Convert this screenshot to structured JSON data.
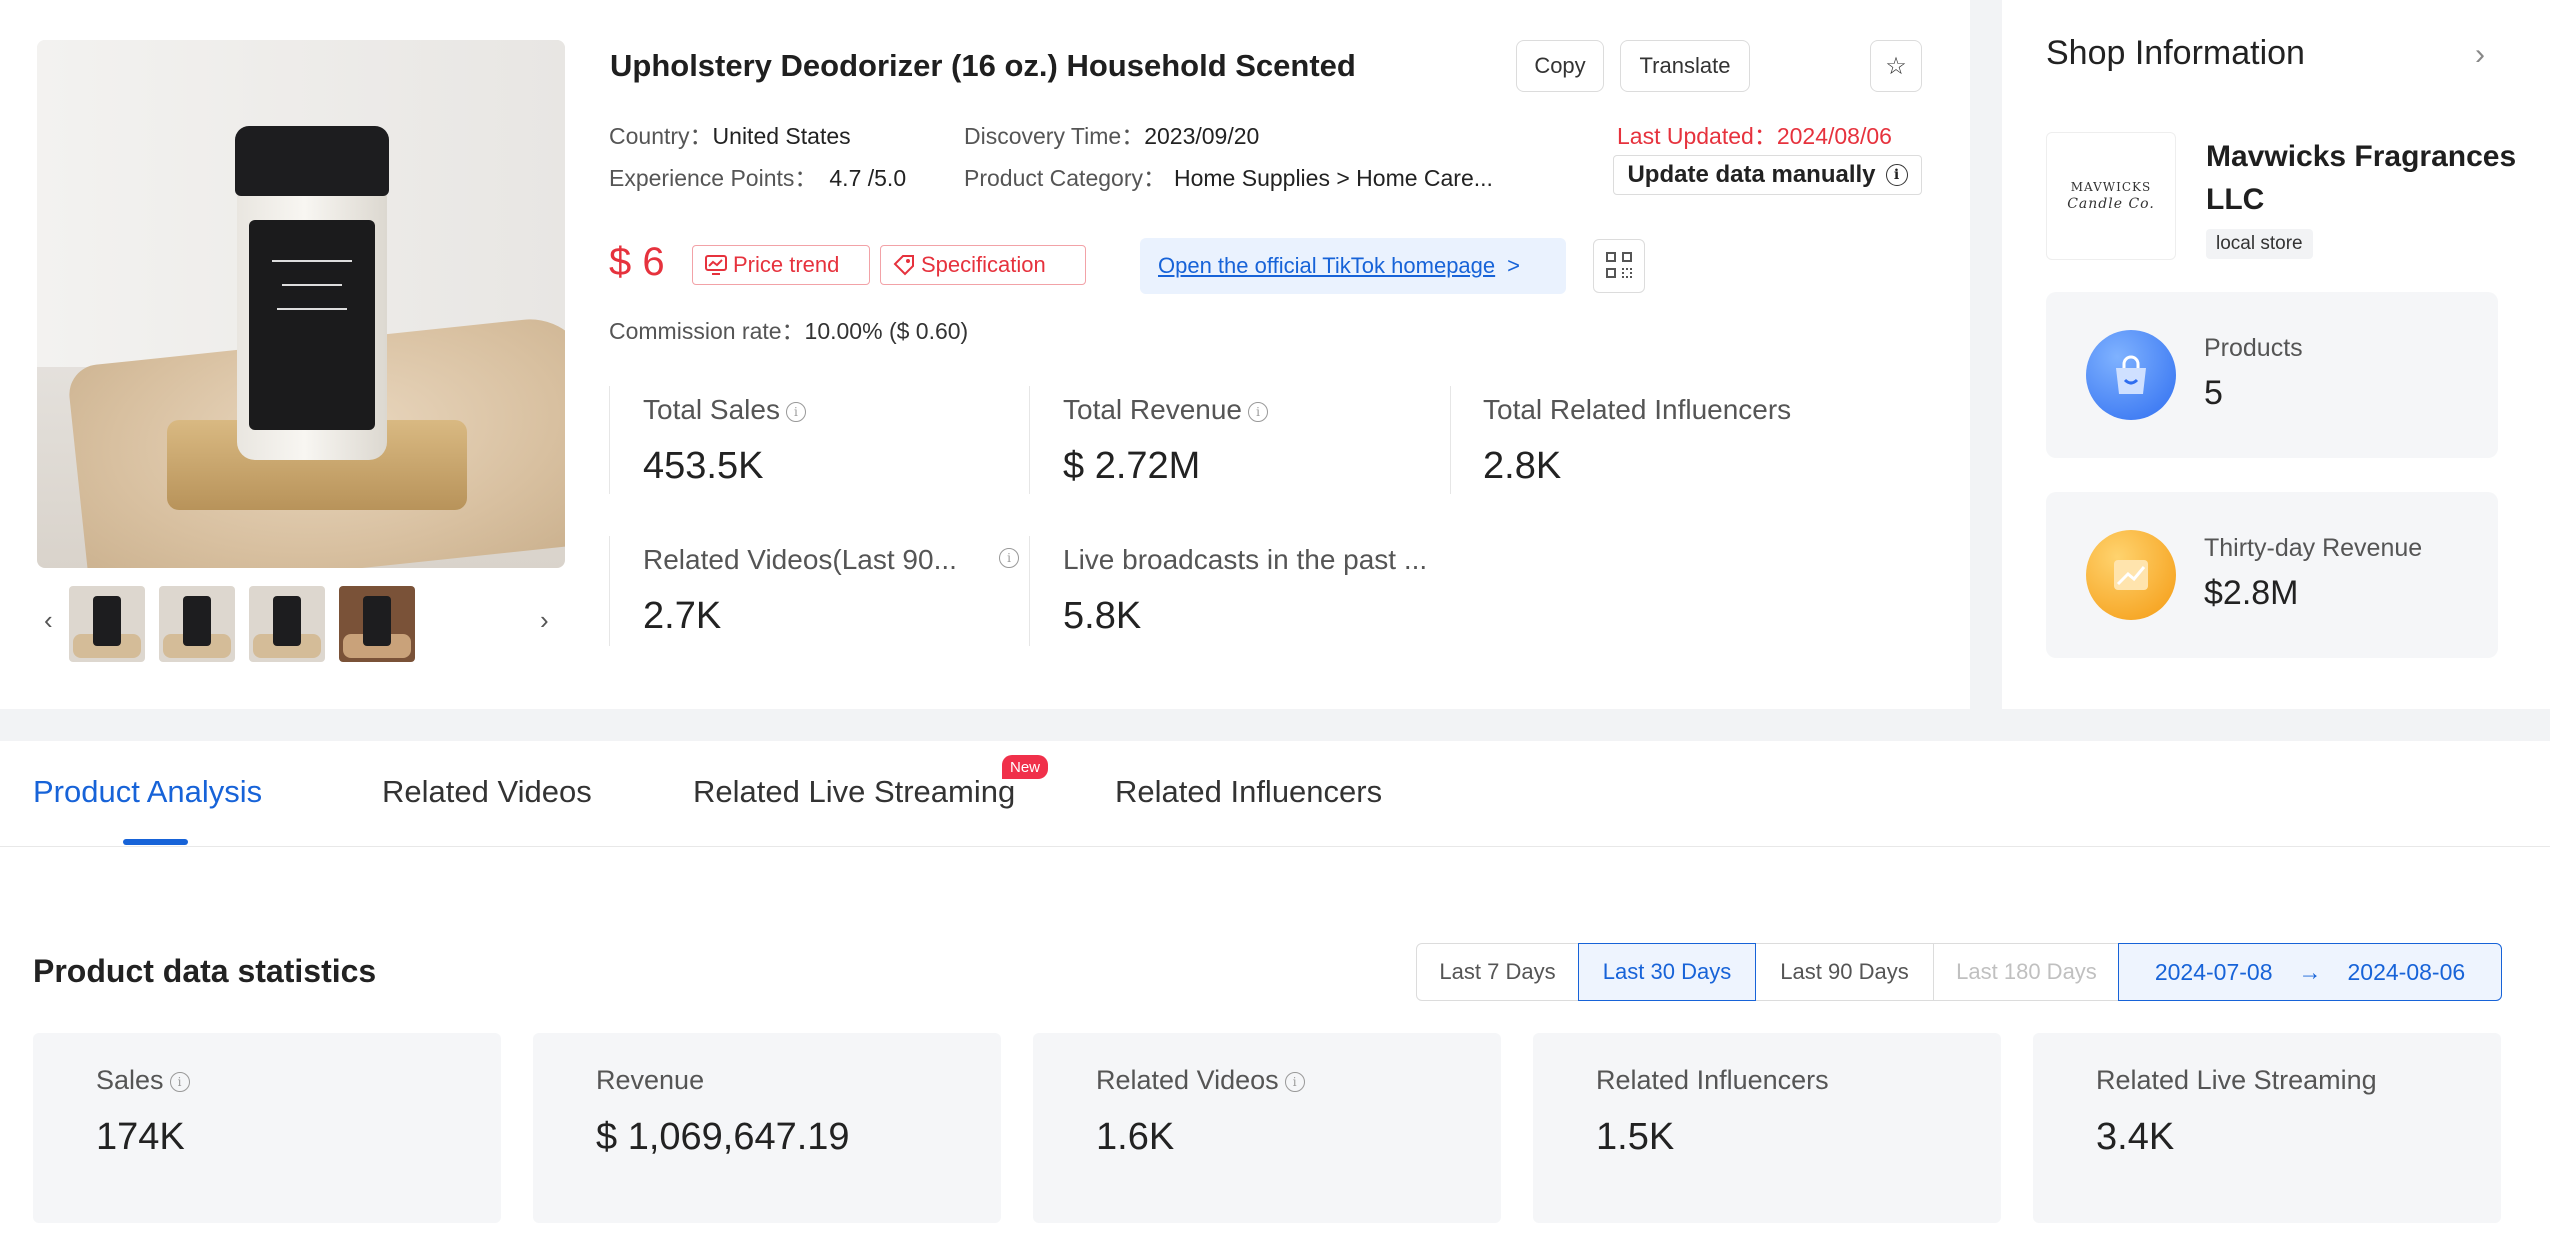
{
  "product": {
    "title": "Upholstery Deodorizer (16 oz.) Household Scented",
    "copy_label": "Copy",
    "translate_label": "Translate",
    "country_key": "Country：",
    "country": "United States",
    "discovery_key": "Discovery Time：",
    "discovery": "2023/09/20",
    "last_updated_key": "Last Updated：",
    "last_updated": "2024/08/06",
    "experience_key": "Experience Points：",
    "experience": "4.7 /5.0",
    "category_key": "Product Category：",
    "category": "Home Supplies > Home Care...",
    "update_btn": "Update data manually",
    "price": "$ 6",
    "price_trend": "Price trend",
    "specification": "Specification",
    "tiktok_link": "Open the official TikTok homepage",
    "tiktok_arrow": ">",
    "commission_key": "Commission rate：",
    "commission": "10.00% ($ 0.60)"
  },
  "overview": [
    {
      "label": "Total Sales",
      "value": "453.5K"
    },
    {
      "label": "Total Revenue",
      "value": "$ 2.72M"
    },
    {
      "label": "Total Related Influencers",
      "value": "2.8K"
    },
    {
      "label": "Related Videos(Last 90...",
      "value": "2.7K"
    },
    {
      "label": "Live broadcasts in the past ...",
      "value": "5.8K"
    }
  ],
  "shop": {
    "title": "Shop Information",
    "logo_text": "MAVWICKS",
    "logo_script": "Candle Co.",
    "name": "Mavwicks Fragrances LLC",
    "badge": "local store",
    "products_label": "Products",
    "products_value": "5",
    "revenue_label": "Thirty-day Revenue",
    "revenue_value": "$2.8M"
  },
  "tabs": [
    {
      "label": "Product Analysis",
      "active": true
    },
    {
      "label": "Related Videos"
    },
    {
      "label": "Related Live Streaming",
      "badge": "New"
    },
    {
      "label": "Related Influencers"
    }
  ],
  "stats": {
    "title": "Product data statistics",
    "ranges": [
      "Last 7 Days",
      "Last 30 Days",
      "Last 90 Days",
      "Last 180 Days"
    ],
    "active_range": "Last 30 Days",
    "date_from": "2024-07-08",
    "date_arrow": "→",
    "date_to": "2024-08-06",
    "cards": [
      {
        "label": "Sales",
        "value": "174K"
      },
      {
        "label": "Revenue",
        "value": "$ 1,069,647.19"
      },
      {
        "label": "Related Videos",
        "value": "1.6K"
      },
      {
        "label": "Related Influencers",
        "value": "1.5K"
      },
      {
        "label": "Related Live Streaming",
        "value": "3.4K"
      }
    ]
  },
  "colors": {
    "accent": "#1763d8",
    "danger": "#e6323d"
  }
}
